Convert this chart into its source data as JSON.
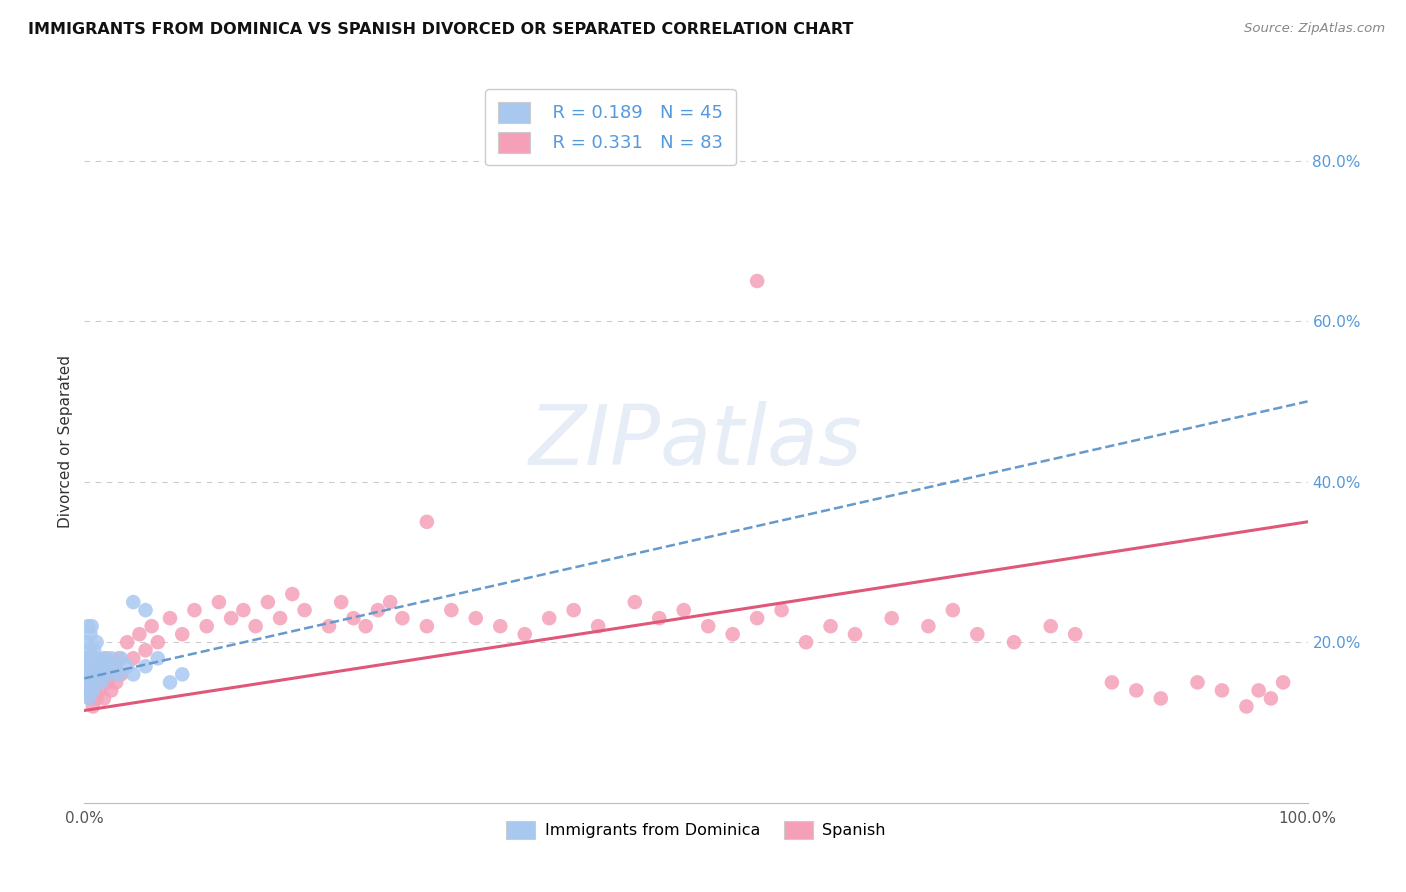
{
  "title": "IMMIGRANTS FROM DOMINICA VS SPANISH DIVORCED OR SEPARATED CORRELATION CHART",
  "source": "Source: ZipAtlas.com",
  "ylabel": "Divorced or Separated",
  "xlim": [
    0.0,
    1.0
  ],
  "ylim": [
    0.0,
    0.9
  ],
  "y_ticks_right": [
    0.2,
    0.4,
    0.6,
    0.8
  ],
  "y_tick_labels_right": [
    "20.0%",
    "40.0%",
    "60.0%",
    "80.0%"
  ],
  "x_tick_labels": [
    "0.0%",
    "",
    "",
    "",
    "",
    "100.0%"
  ],
  "grid_color": "#cccccc",
  "background_color": "#ffffff",
  "blue_R": 0.189,
  "blue_N": 45,
  "pink_R": 0.331,
  "pink_N": 83,
  "blue_color": "#a8c8f0",
  "pink_color": "#f5a0b8",
  "blue_line_color": "#6699cc",
  "pink_line_color": "#e05878",
  "legend_label_blue": "Immigrants from Dominica",
  "legend_label_pink": "Spanish",
  "blue_x": [
    0.001,
    0.001,
    0.002,
    0.002,
    0.002,
    0.003,
    0.003,
    0.003,
    0.004,
    0.004,
    0.004,
    0.005,
    0.005,
    0.005,
    0.006,
    0.006,
    0.006,
    0.007,
    0.007,
    0.008,
    0.008,
    0.009,
    0.009,
    0.01,
    0.01,
    0.011,
    0.012,
    0.013,
    0.014,
    0.015,
    0.016,
    0.018,
    0.02,
    0.022,
    0.025,
    0.028,
    0.03,
    0.035,
    0.04,
    0.05,
    0.06,
    0.07,
    0.08,
    0.04,
    0.05
  ],
  "blue_y": [
    0.16,
    0.18,
    0.14,
    0.17,
    0.2,
    0.15,
    0.18,
    0.22,
    0.13,
    0.16,
    0.19,
    0.14,
    0.17,
    0.21,
    0.15,
    0.18,
    0.22,
    0.14,
    0.17,
    0.16,
    0.19,
    0.15,
    0.18,
    0.16,
    0.2,
    0.17,
    0.16,
    0.17,
    0.15,
    0.16,
    0.18,
    0.17,
    0.16,
    0.18,
    0.17,
    0.16,
    0.18,
    0.17,
    0.16,
    0.17,
    0.18,
    0.15,
    0.16,
    0.25,
    0.24
  ],
  "pink_x": [
    0.003,
    0.005,
    0.006,
    0.007,
    0.008,
    0.009,
    0.01,
    0.011,
    0.012,
    0.013,
    0.014,
    0.015,
    0.016,
    0.017,
    0.018,
    0.019,
    0.02,
    0.022,
    0.024,
    0.026,
    0.028,
    0.03,
    0.035,
    0.04,
    0.045,
    0.05,
    0.055,
    0.06,
    0.07,
    0.08,
    0.09,
    0.1,
    0.11,
    0.12,
    0.13,
    0.14,
    0.15,
    0.16,
    0.17,
    0.18,
    0.2,
    0.21,
    0.22,
    0.23,
    0.24,
    0.25,
    0.26,
    0.28,
    0.3,
    0.32,
    0.34,
    0.36,
    0.38,
    0.4,
    0.42,
    0.45,
    0.47,
    0.49,
    0.51,
    0.53,
    0.55,
    0.57,
    0.59,
    0.61,
    0.63,
    0.66,
    0.69,
    0.71,
    0.73,
    0.76,
    0.79,
    0.81,
    0.84,
    0.86,
    0.88,
    0.91,
    0.93,
    0.95,
    0.96,
    0.97,
    0.98,
    0.28,
    0.55
  ],
  "pink_y": [
    0.14,
    0.13,
    0.15,
    0.12,
    0.16,
    0.14,
    0.13,
    0.15,
    0.16,
    0.14,
    0.17,
    0.15,
    0.13,
    0.16,
    0.18,
    0.15,
    0.16,
    0.14,
    0.17,
    0.15,
    0.18,
    0.16,
    0.2,
    0.18,
    0.21,
    0.19,
    0.22,
    0.2,
    0.23,
    0.21,
    0.24,
    0.22,
    0.25,
    0.23,
    0.24,
    0.22,
    0.25,
    0.23,
    0.26,
    0.24,
    0.22,
    0.25,
    0.23,
    0.22,
    0.24,
    0.25,
    0.23,
    0.22,
    0.24,
    0.23,
    0.22,
    0.21,
    0.23,
    0.24,
    0.22,
    0.25,
    0.23,
    0.24,
    0.22,
    0.21,
    0.23,
    0.24,
    0.2,
    0.22,
    0.21,
    0.23,
    0.22,
    0.24,
    0.21,
    0.2,
    0.22,
    0.21,
    0.15,
    0.14,
    0.13,
    0.15,
    0.14,
    0.12,
    0.14,
    0.13,
    0.15,
    0.35,
    0.65
  ],
  "blue_line_x0": 0.0,
  "blue_line_x1": 1.0,
  "blue_line_y0": 0.155,
  "blue_line_y1": 0.5,
  "pink_line_x0": 0.0,
  "pink_line_x1": 1.0,
  "pink_line_y0": 0.115,
  "pink_line_y1": 0.35
}
